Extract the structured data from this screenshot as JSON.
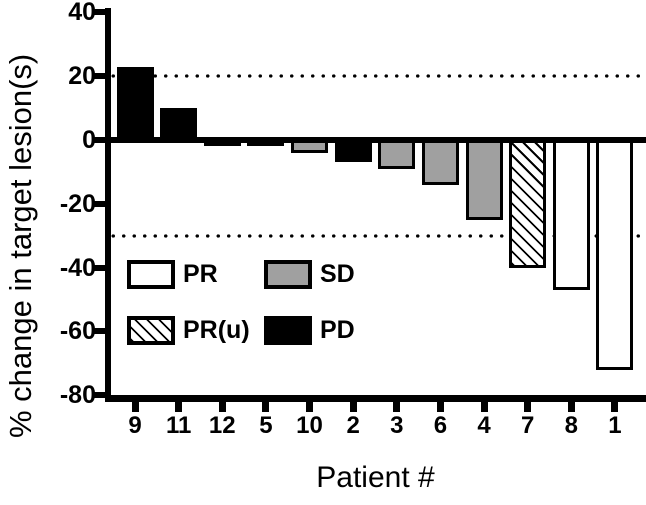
{
  "chart_data": {
    "type": "bar",
    "subtype": "waterfall",
    "title": "",
    "xlabel": "Patient #",
    "ylabel": "% change in target lesion(s)",
    "ylim": [
      -80,
      40
    ],
    "yticks": [
      40,
      20,
      0,
      -20,
      -40,
      -60,
      -80
    ],
    "reference_lines": [
      20,
      -30
    ],
    "grid": "off",
    "legend_position": "inside-lower-left",
    "categories": [
      "9",
      "11",
      "12",
      "5",
      "10",
      "2",
      "3",
      "6",
      "4",
      "7",
      "8",
      "1"
    ],
    "series": [
      {
        "name": "% change in target lesion(s)",
        "values": [
          23,
          10,
          -1,
          -2,
          -4,
          -7,
          -9,
          -14,
          -25,
          -40,
          -47,
          -72
        ]
      }
    ],
    "bar_response_category": [
      "PD",
      "PD",
      "PD",
      "PD",
      "SD",
      "PD",
      "SD",
      "SD",
      "SD",
      "PR(u)",
      "PR",
      "PR"
    ],
    "legend": [
      {
        "label": "PR",
        "fill": "white"
      },
      {
        "label": "SD",
        "fill": "gray"
      },
      {
        "label": "PR(u)",
        "fill": "hatch"
      },
      {
        "label": "PD",
        "fill": "black"
      }
    ],
    "colors": {
      "black": "#000000",
      "gray": "#a0a0a0",
      "white": "#ffffff",
      "axis": "#000000"
    }
  }
}
